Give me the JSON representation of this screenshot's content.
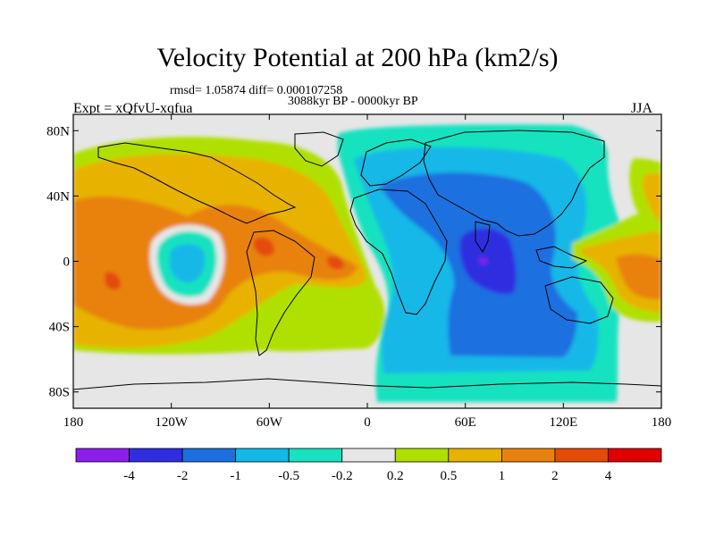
{
  "figure": {
    "title": "Velocity Potential at 200 hPa (km2/s)",
    "stats": "rmsd= 1.05874 diff= 0.000107258",
    "period": "3088kyr BP - 0000kyr BP",
    "experiment": "Expt = xQfvU-xqfua",
    "season": "JJA"
  },
  "map": {
    "projection": "cylindrical-equidistant",
    "lon_range": [
      -180,
      180
    ],
    "lat_range": [
      -90,
      90
    ],
    "lon_ticks": [
      -180,
      -120,
      -60,
      0,
      60,
      120,
      180
    ],
    "lon_tick_labels": [
      "180",
      "120W",
      "60W",
      "0",
      "60E",
      "120E",
      "180"
    ],
    "lat_ticks": [
      80,
      40,
      0,
      -40,
      -80
    ],
    "lat_tick_labels": [
      "80N",
      "40N",
      "0",
      "40S",
      "80S"
    ],
    "background_color": "#e6e6e6"
  },
  "colorbar": {
    "colors": [
      "#8c1eeb",
      "#2e2ee0",
      "#1d6fe0",
      "#12b8e8",
      "#18e2c0",
      "#e6e6e6",
      "#b0e000",
      "#e8b200",
      "#e8820f",
      "#e44b08",
      "#e00000"
    ],
    "boundary_labels": [
      "-4",
      "-2",
      "-1",
      "-0.5",
      "-0.2",
      "0.2",
      "0.5",
      "1",
      "2",
      "4"
    ]
  }
}
